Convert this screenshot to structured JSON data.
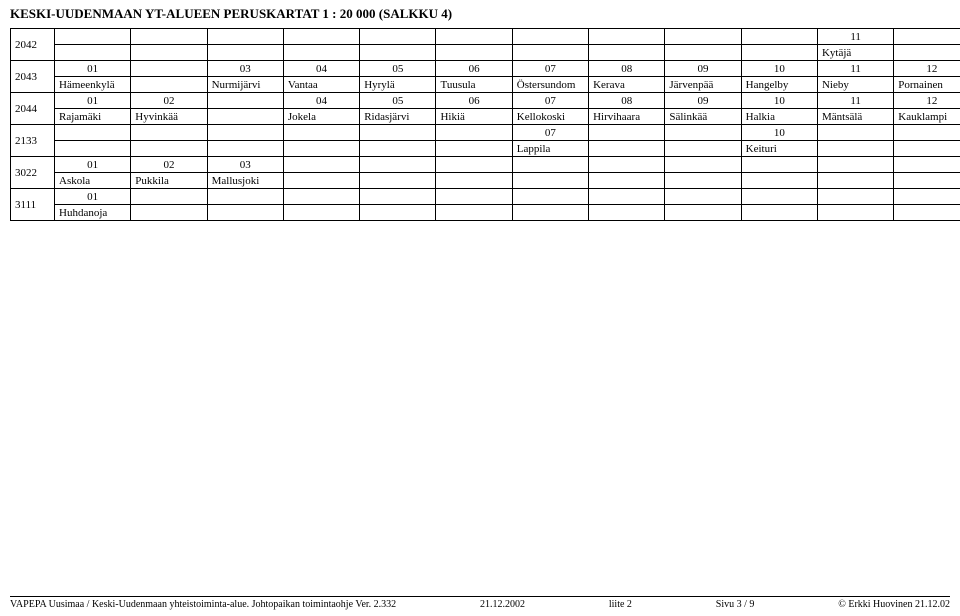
{
  "title": "KESKI-UUDENMAAN YT-ALUEEN PERUSKARTAT 1 : 20 000 (SALKKU 4)",
  "rows": [
    {
      "id": "2042",
      "cells": [
        {
          "num": "",
          "label": ""
        },
        {
          "num": "",
          "label": ""
        },
        {
          "num": "",
          "label": ""
        },
        {
          "num": "",
          "label": ""
        },
        {
          "num": "",
          "label": ""
        },
        {
          "num": "",
          "label": ""
        },
        {
          "num": "",
          "label": ""
        },
        {
          "num": "",
          "label": ""
        },
        {
          "num": "",
          "label": ""
        },
        {
          "num": "",
          "label": ""
        },
        {
          "num": "11",
          "label": "Kytäjä"
        },
        {
          "num": "",
          "label": ""
        }
      ]
    },
    {
      "id": "2043",
      "cells": [
        {
          "num": "01",
          "label": "Hämeenkylä"
        },
        {
          "num": "",
          "label": ""
        },
        {
          "num": "03",
          "label": "Nurmijärvi"
        },
        {
          "num": "04",
          "label": "Vantaa"
        },
        {
          "num": "05",
          "label": "Hyrylä"
        },
        {
          "num": "06",
          "label": "Tuusula"
        },
        {
          "num": "07",
          "label": "Östersundom"
        },
        {
          "num": "08",
          "label": "Kerava"
        },
        {
          "num": "09",
          "label": "Järvenpää"
        },
        {
          "num": "10",
          "label": "Hangelby"
        },
        {
          "num": "11",
          "label": "Nieby"
        },
        {
          "num": "12",
          "label": "Pornainen"
        }
      ]
    },
    {
      "id": "2044",
      "cells": [
        {
          "num": "01",
          "label": "Rajamäki"
        },
        {
          "num": "02",
          "label": "Hyvinkää"
        },
        {
          "num": "",
          "label": ""
        },
        {
          "num": "04",
          "label": "Jokela"
        },
        {
          "num": "05",
          "label": "Ridasjärvi"
        },
        {
          "num": "06",
          "label": "Hikiä"
        },
        {
          "num": "07",
          "label": "Kellokoski"
        },
        {
          "num": "08",
          "label": "Hirvihaara"
        },
        {
          "num": "09",
          "label": "Sälinkää"
        },
        {
          "num": "10",
          "label": "Halkia"
        },
        {
          "num": "11",
          "label": "Mäntsälä"
        },
        {
          "num": "12",
          "label": "Kauklampi"
        }
      ]
    },
    {
      "id": "2133",
      "cells": [
        {
          "num": "",
          "label": ""
        },
        {
          "num": "",
          "label": ""
        },
        {
          "num": "",
          "label": ""
        },
        {
          "num": "",
          "label": ""
        },
        {
          "num": "",
          "label": ""
        },
        {
          "num": "",
          "label": ""
        },
        {
          "num": "07",
          "label": "Lappila"
        },
        {
          "num": "",
          "label": ""
        },
        {
          "num": "",
          "label": ""
        },
        {
          "num": "10",
          "label": "Keituri"
        },
        {
          "num": "",
          "label": ""
        },
        {
          "num": "",
          "label": ""
        }
      ]
    },
    {
      "id": "3022",
      "cells": [
        {
          "num": "01",
          "label": "Askola"
        },
        {
          "num": "02",
          "label": "Pukkila"
        },
        {
          "num": "03",
          "label": "Mallusjoki"
        },
        {
          "num": "",
          "label": ""
        },
        {
          "num": "",
          "label": ""
        },
        {
          "num": "",
          "label": ""
        },
        {
          "num": "",
          "label": ""
        },
        {
          "num": "",
          "label": ""
        },
        {
          "num": "",
          "label": ""
        },
        {
          "num": "",
          "label": ""
        },
        {
          "num": "",
          "label": ""
        },
        {
          "num": "",
          "label": ""
        }
      ]
    },
    {
      "id": "3111",
      "cells": [
        {
          "num": "01",
          "label": "Huhdanoja"
        },
        {
          "num": "",
          "label": ""
        },
        {
          "num": "",
          "label": ""
        },
        {
          "num": "",
          "label": ""
        },
        {
          "num": "",
          "label": ""
        },
        {
          "num": "",
          "label": ""
        },
        {
          "num": "",
          "label": ""
        },
        {
          "num": "",
          "label": ""
        },
        {
          "num": "",
          "label": ""
        },
        {
          "num": "",
          "label": ""
        },
        {
          "num": "",
          "label": ""
        },
        {
          "num": "",
          "label": ""
        }
      ]
    }
  ],
  "footer": {
    "left": "VAPEPA Uusimaa / Keski-Uudenmaan yhteistoiminta-alue. Johtopaikan toimintaohje Ver. 2.332",
    "date": "21.12.2002",
    "attachment": "liite 2",
    "page": "Sivu 3 / 9",
    "right": "© Erkki Huovinen 21.12.02"
  }
}
